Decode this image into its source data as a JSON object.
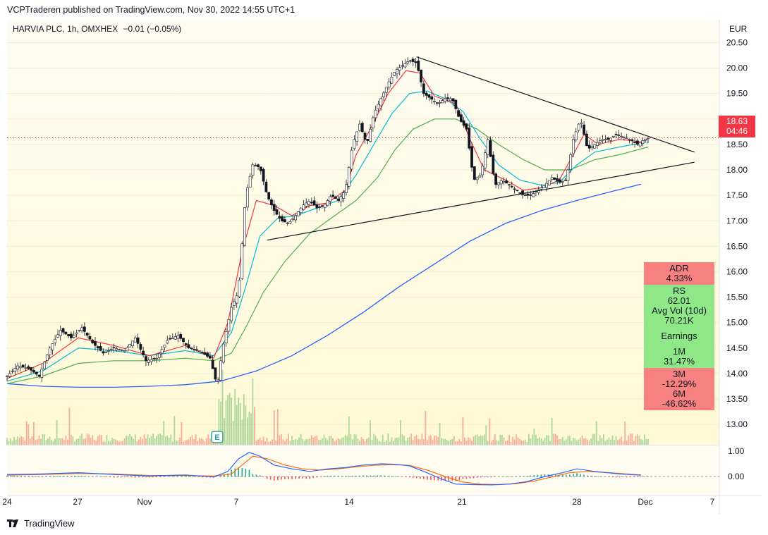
{
  "header": {
    "publisher_line": "VCPTraderen published on TradingView.com, Nov 30, 2022 14:55 UTC+1"
  },
  "legend": {
    "symbol": "HARVIA PLC, 1h, OMXHEX",
    "change": "−0.01 (−0.05%)"
  },
  "price_axis": {
    "currency": "EUR",
    "last_price": "18.63",
    "countdown": "04:46"
  },
  "oscillator_axis": {
    "ticks": [
      "1.00",
      "0.00"
    ]
  },
  "time_axis": {
    "ticks": [
      "24",
      "27",
      "Nov",
      "7",
      "14",
      "21",
      "28",
      "Dec",
      "7"
    ]
  },
  "stats": {
    "adr_label": "ADR",
    "adr_value": "4.33%",
    "rs_label": "RS",
    "rs_value": "62.01",
    "avgvol_label": "Avg Vol (10d)",
    "avgvol_value": "70.21K",
    "earnings_label": "Earnings",
    "m1_label": "1M",
    "m1_value": "31.47%",
    "m3_label": "3M",
    "m3_value": "-12.29%",
    "m6_label": "6M",
    "m6_value": "-46.62%"
  },
  "earnings_marker": "E",
  "footer": {
    "brand": "TradingView"
  },
  "colors": {
    "candle_up": "#26a69a",
    "candle_down": "#ef5350",
    "ema_red": "#f23645",
    "ema_cyan": "#00bcd4",
    "sma_green": "#4caf50",
    "sma_blue": "#2962ff",
    "last_price_tag": "#f23645",
    "pane_bg_top": "#fdf7de",
    "pane_bg": "#fff9d6"
  },
  "chart_data": {
    "type": "candlestick",
    "interval": "1h",
    "y_axis": {
      "ticks": [
        20.5,
        20.0,
        19.5,
        19.0,
        18.5,
        18.0,
        17.5,
        17.0,
        16.5,
        16.0,
        15.5,
        15.0,
        14.5,
        14.0,
        13.5,
        13.0
      ],
      "range": [
        12.6,
        20.95
      ]
    },
    "x_labels": [
      "24",
      "27",
      "Nov",
      "7",
      "14",
      "21",
      "28",
      "Dec",
      "7"
    ],
    "price_path": [
      [
        0,
        13.95
      ],
      [
        6,
        14.15
      ],
      [
        12,
        14.1
      ],
      [
        18,
        13.95
      ],
      [
        24,
        14.5
      ],
      [
        30,
        14.85
      ],
      [
        36,
        14.7
      ],
      [
        42,
        14.9
      ],
      [
        48,
        14.6
      ],
      [
        54,
        14.4
      ],
      [
        60,
        14.5
      ],
      [
        66,
        14.45
      ],
      [
        72,
        14.7
      ],
      [
        78,
        14.25
      ],
      [
        84,
        14.3
      ],
      [
        90,
        14.65
      ],
      [
        96,
        14.75
      ],
      [
        102,
        14.5
      ],
      [
        108,
        14.45
      ],
      [
        114,
        14.3
      ],
      [
        118,
        13.75
      ],
      [
        121,
        14.5
      ],
      [
        126,
        15.3
      ],
      [
        130,
        15.6
      ],
      [
        134,
        17.5
      ],
      [
        138,
        18.1
      ],
      [
        142,
        18.05
      ],
      [
        146,
        17.5
      ],
      [
        150,
        17.2
      ],
      [
        154,
        17.0
      ],
      [
        158,
        16.95
      ],
      [
        162,
        17.1
      ],
      [
        166,
        17.3
      ],
      [
        170,
        17.4
      ],
      [
        174,
        17.25
      ],
      [
        178,
        17.3
      ],
      [
        182,
        17.5
      ],
      [
        186,
        17.4
      ],
      [
        190,
        17.6
      ],
      [
        194,
        18.5
      ],
      [
        198,
        18.9
      ],
      [
        202,
        18.5
      ],
      [
        206,
        19.1
      ],
      [
        210,
        19.4
      ],
      [
        214,
        19.7
      ],
      [
        218,
        19.95
      ],
      [
        222,
        20.05
      ],
      [
        226,
        20.15
      ],
      [
        230,
        20.1
      ],
      [
        234,
        19.5
      ],
      [
        238,
        19.4
      ],
      [
        242,
        19.3
      ],
      [
        246,
        19.4
      ],
      [
        250,
        19.4
      ],
      [
        254,
        19.0
      ],
      [
        258,
        18.8
      ],
      [
        262,
        17.8
      ],
      [
        266,
        17.9
      ],
      [
        270,
        18.6
      ],
      [
        274,
        17.7
      ],
      [
        278,
        17.8
      ],
      [
        282,
        17.7
      ],
      [
        286,
        17.6
      ],
      [
        290,
        17.5
      ],
      [
        294,
        17.5
      ],
      [
        298,
        17.6
      ],
      [
        302,
        17.7
      ],
      [
        306,
        17.85
      ],
      [
        310,
        17.75
      ],
      [
        314,
        17.8
      ],
      [
        318,
        18.6
      ],
      [
        322,
        19.0
      ],
      [
        326,
        18.4
      ],
      [
        330,
        18.5
      ],
      [
        334,
        18.6
      ],
      [
        338,
        18.6
      ],
      [
        342,
        18.7
      ],
      [
        346,
        18.65
      ],
      [
        350,
        18.6
      ],
      [
        354,
        18.5
      ],
      [
        358,
        18.6
      ],
      [
        360,
        18.63
      ]
    ],
    "ema_fast": [
      [
        0,
        13.9
      ],
      [
        20,
        14.2
      ],
      [
        40,
        14.7
      ],
      [
        60,
        14.55
      ],
      [
        80,
        14.35
      ],
      [
        100,
        14.55
      ],
      [
        116,
        14.3
      ],
      [
        124,
        15.0
      ],
      [
        132,
        16.4
      ],
      [
        140,
        17.4
      ],
      [
        150,
        17.3
      ],
      [
        160,
        17.1
      ],
      [
        170,
        17.3
      ],
      [
        180,
        17.35
      ],
      [
        190,
        17.6
      ],
      [
        196,
        18.3
      ],
      [
        204,
        18.8
      ],
      [
        214,
        19.5
      ],
      [
        224,
        19.95
      ],
      [
        232,
        19.9
      ],
      [
        240,
        19.45
      ],
      [
        252,
        19.3
      ],
      [
        260,
        18.6
      ],
      [
        268,
        18.0
      ],
      [
        280,
        17.8
      ],
      [
        290,
        17.6
      ],
      [
        300,
        17.65
      ],
      [
        310,
        17.8
      ],
      [
        318,
        18.3
      ],
      [
        324,
        18.7
      ],
      [
        332,
        18.5
      ],
      [
        344,
        18.6
      ],
      [
        356,
        18.55
      ],
      [
        360,
        18.6
      ]
    ],
    "ema_mid": [
      [
        0,
        13.85
      ],
      [
        20,
        14.05
      ],
      [
        40,
        14.5
      ],
      [
        60,
        14.45
      ],
      [
        80,
        14.35
      ],
      [
        100,
        14.45
      ],
      [
        116,
        14.35
      ],
      [
        126,
        14.8
      ],
      [
        134,
        15.7
      ],
      [
        142,
        16.7
      ],
      [
        152,
        17.05
      ],
      [
        162,
        17.1
      ],
      [
        174,
        17.25
      ],
      [
        186,
        17.4
      ],
      [
        196,
        17.9
      ],
      [
        206,
        18.5
      ],
      [
        216,
        19.1
      ],
      [
        226,
        19.5
      ],
      [
        236,
        19.55
      ],
      [
        246,
        19.4
      ],
      [
        256,
        19.15
      ],
      [
        266,
        18.6
      ],
      [
        276,
        18.1
      ],
      [
        288,
        17.8
      ],
      [
        300,
        17.7
      ],
      [
        310,
        17.75
      ],
      [
        320,
        18.1
      ],
      [
        330,
        18.35
      ],
      [
        344,
        18.45
      ],
      [
        360,
        18.55
      ]
    ],
    "sma_50": [
      [
        0,
        13.8
      ],
      [
        20,
        13.95
      ],
      [
        40,
        14.2
      ],
      [
        60,
        14.25
      ],
      [
        80,
        14.25
      ],
      [
        100,
        14.3
      ],
      [
        116,
        14.25
      ],
      [
        126,
        14.4
      ],
      [
        134,
        14.9
      ],
      [
        144,
        15.6
      ],
      [
        156,
        16.2
      ],
      [
        170,
        16.75
      ],
      [
        184,
        17.1
      ],
      [
        196,
        17.4
      ],
      [
        208,
        17.85
      ],
      [
        218,
        18.4
      ],
      [
        228,
        18.8
      ],
      [
        240,
        19.0
      ],
      [
        252,
        19.0
      ],
      [
        264,
        18.8
      ],
      [
        276,
        18.5
      ],
      [
        290,
        18.2
      ],
      [
        302,
        18.0
      ],
      [
        316,
        18.0
      ],
      [
        330,
        18.2
      ],
      [
        344,
        18.3
      ],
      [
        360,
        18.45
      ]
    ],
    "sma_200": [
      [
        0,
        13.8
      ],
      [
        20,
        13.75
      ],
      [
        40,
        13.73
      ],
      [
        60,
        13.73
      ],
      [
        80,
        13.75
      ],
      [
        100,
        13.78
      ],
      [
        120,
        13.85
      ],
      [
        140,
        14.05
      ],
      [
        160,
        14.35
      ],
      [
        180,
        14.75
      ],
      [
        200,
        15.2
      ],
      [
        220,
        15.7
      ],
      [
        240,
        16.15
      ],
      [
        260,
        16.6
      ],
      [
        280,
        16.95
      ],
      [
        300,
        17.2
      ],
      [
        320,
        17.4
      ],
      [
        340,
        17.58
      ],
      [
        356,
        17.72
      ]
    ],
    "trendlines": [
      {
        "name": "upper",
        "from": [
          230,
          20.22
        ],
        "to": [
          386,
          18.35
        ]
      },
      {
        "name": "lower",
        "from": [
          146,
          16.62
        ],
        "to": [
          386,
          18.15
        ]
      }
    ],
    "last_price": 18.63,
    "oscillator": {
      "ticks": [
        1.0,
        0.0
      ],
      "macd": [
        [
          0,
          0.08
        ],
        [
          20,
          0.1
        ],
        [
          40,
          0.15
        ],
        [
          60,
          0.08
        ],
        [
          80,
          0.02
        ],
        [
          100,
          0.06
        ],
        [
          116,
          -0.02
        ],
        [
          124,
          0.2
        ],
        [
          130,
          0.7
        ],
        [
          136,
          0.95
        ],
        [
          142,
          0.8
        ],
        [
          150,
          0.45
        ],
        [
          160,
          0.3
        ],
        [
          170,
          0.2
        ],
        [
          180,
          0.3
        ],
        [
          190,
          0.35
        ],
        [
          200,
          0.45
        ],
        [
          210,
          0.5
        ],
        [
          218,
          0.48
        ],
        [
          226,
          0.42
        ],
        [
          234,
          0.2
        ],
        [
          244,
          -0.1
        ],
        [
          252,
          -0.3
        ],
        [
          262,
          -0.32
        ],
        [
          272,
          -0.33
        ],
        [
          282,
          -0.3
        ],
        [
          292,
          -0.2
        ],
        [
          302,
          0.0
        ],
        [
          312,
          0.15
        ],
        [
          320,
          0.3
        ],
        [
          330,
          0.2
        ],
        [
          344,
          0.1
        ],
        [
          356,
          0.05
        ]
      ],
      "signal": [
        [
          0,
          0.05
        ],
        [
          20,
          0.08
        ],
        [
          40,
          0.12
        ],
        [
          60,
          0.1
        ],
        [
          80,
          0.04
        ],
        [
          100,
          0.04
        ],
        [
          116,
          0.02
        ],
        [
          126,
          0.1
        ],
        [
          132,
          0.45
        ],
        [
          138,
          0.8
        ],
        [
          146,
          0.7
        ],
        [
          156,
          0.45
        ],
        [
          166,
          0.3
        ],
        [
          176,
          0.25
        ],
        [
          186,
          0.3
        ],
        [
          196,
          0.38
        ],
        [
          206,
          0.44
        ],
        [
          216,
          0.47
        ],
        [
          226,
          0.44
        ],
        [
          236,
          0.25
        ],
        [
          246,
          0.0
        ],
        [
          256,
          -0.22
        ],
        [
          266,
          -0.3
        ],
        [
          276,
          -0.32
        ],
        [
          286,
          -0.28
        ],
        [
          296,
          -0.18
        ],
        [
          306,
          -0.02
        ],
        [
          316,
          0.15
        ],
        [
          326,
          0.2
        ],
        [
          338,
          0.15
        ],
        [
          356,
          0.06
        ]
      ]
    }
  }
}
